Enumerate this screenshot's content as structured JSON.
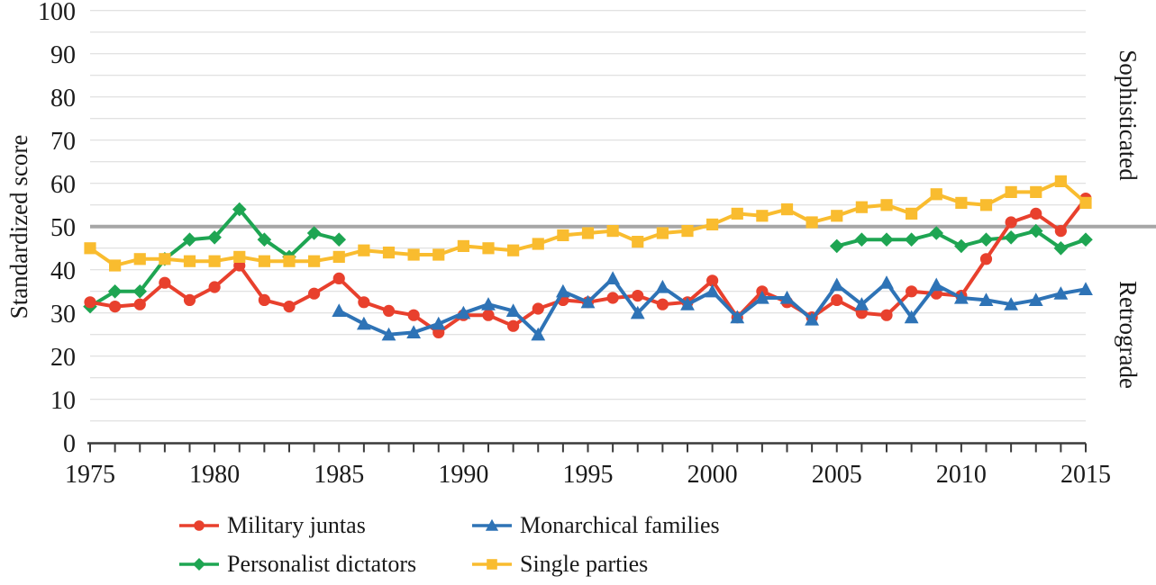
{
  "chart_data": {
    "type": "line",
    "title": "",
    "ylabel": "Standardized score",
    "right_labels": {
      "top": "Sophisticated",
      "bottom": "Retrograde"
    },
    "ylim": [
      0,
      100
    ],
    "grid_step": 5,
    "grid_on": true,
    "reference_line_value": 50,
    "y_ticks": [
      0,
      10,
      20,
      30,
      40,
      50,
      60,
      70,
      80,
      90,
      100
    ],
    "x_tick_labels": [
      "1975",
      "1980",
      "1985",
      "1990",
      "1995",
      "2000",
      "2005",
      "2010",
      "2015"
    ],
    "years": [
      1975,
      1976,
      1977,
      1978,
      1979,
      1980,
      1981,
      1982,
      1983,
      1984,
      1985,
      1986,
      1987,
      1988,
      1989,
      1990,
      1991,
      1992,
      1993,
      1994,
      1995,
      1996,
      1997,
      1998,
      1999,
      2000,
      2001,
      2002,
      2003,
      2004,
      2005,
      2006,
      2007,
      2008,
      2009,
      2010,
      2011,
      2012,
      2013,
      2014,
      2015
    ],
    "legend_position": "bottom",
    "series": [
      {
        "name": "Military juntas",
        "marker": "circle",
        "color": "#e8402d",
        "values": [
          32.5,
          31.5,
          32,
          37,
          33,
          36,
          41,
          33,
          31.5,
          34.5,
          38,
          32.5,
          30.5,
          29.5,
          25.5,
          29.5,
          29.5,
          27,
          31,
          33,
          32.5,
          33.5,
          34,
          32,
          32.5,
          37.5,
          29,
          35,
          32.5,
          29,
          33,
          30,
          29.5,
          35,
          34.5,
          34,
          42.5,
          51,
          53,
          49,
          56.5
        ]
      },
      {
        "name": "Monarchical families",
        "marker": "triangle",
        "color": "#2e73b6",
        "values": [
          null,
          null,
          null,
          null,
          null,
          null,
          null,
          null,
          null,
          null,
          30.5,
          27.5,
          25,
          25.5,
          27.5,
          30,
          32,
          30.5,
          25,
          35,
          32.5,
          38,
          30,
          36,
          32,
          35,
          29,
          33.5,
          33.5,
          28.5,
          36.5,
          32,
          37,
          29,
          36.5,
          33.5,
          33,
          32,
          33,
          34.5,
          35.5
        ]
      },
      {
        "name": "Personalist dictators",
        "marker": "diamond",
        "color": "#1ea552",
        "values": [
          31.5,
          35,
          35,
          42.5,
          47,
          47.5,
          54,
          47,
          43,
          48.5,
          47,
          null,
          null,
          null,
          null,
          null,
          null,
          null,
          null,
          null,
          null,
          null,
          null,
          null,
          null,
          null,
          null,
          null,
          null,
          null,
          45.5,
          47,
          47,
          47,
          48.5,
          45.5,
          47,
          47.5,
          49,
          45,
          47
        ]
      },
      {
        "name": "Single parties",
        "marker": "square",
        "color": "#f9bc2f",
        "values": [
          45,
          41,
          42.5,
          42.5,
          42,
          42,
          43,
          42,
          42,
          42,
          43,
          44.5,
          44,
          43.5,
          43.5,
          45.5,
          45,
          44.5,
          46,
          48,
          48.5,
          49,
          46.5,
          48.5,
          49,
          50.5,
          53,
          52.5,
          54,
          51,
          52.5,
          54.5,
          55,
          53,
          57.5,
          55.5,
          55,
          58,
          58,
          60.5,
          55.5
        ]
      }
    ]
  },
  "legend": {
    "items": [
      {
        "label": "Military juntas",
        "marker": "circle",
        "color": "#e8402d"
      },
      {
        "label": "Monarchical families",
        "marker": "triangle",
        "color": "#2e73b6"
      },
      {
        "label": "Personalist dictators",
        "marker": "diamond",
        "color": "#1ea552"
      },
      {
        "label": "Single parties",
        "marker": "square",
        "color": "#f9bc2f"
      }
    ]
  },
  "style_colors": {
    "gridline": "#d9d9d9",
    "reference_line": "#a6a6a6",
    "axis": "#3a3a3a",
    "text": "#1a1a1a"
  }
}
